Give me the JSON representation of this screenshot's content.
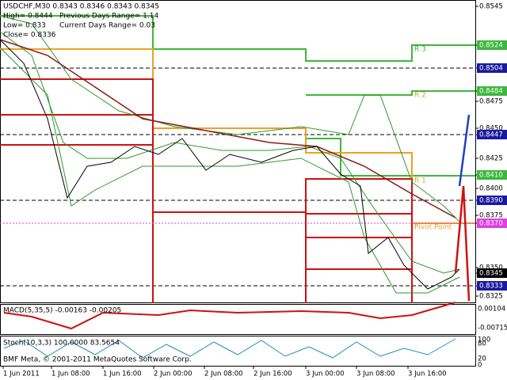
{
  "header": {
    "symbol_line": "USDCHF,M30 0.8343 0.8346 0.8343 0.8345",
    "high": "High= 0.8444",
    "prev_range": "Previous Days Range= 1.14",
    "low": "Low= 0.833",
    "cur_range": "Current Days Range= 0.03",
    "close": "Close= 0.8336"
  },
  "pivot_labels": [
    "R 3",
    "R 2",
    "R 1",
    "Pivot Point"
  ],
  "price_axis": [
    "0.8545",
    "0.8524",
    "0.8504",
    "0.8484",
    "0.8475",
    "0.8450",
    "0.8447",
    "0.8425",
    "0.8410",
    "0.8400",
    "0.8390",
    "0.8375",
    "0.8370",
    "0.8350",
    "0.8345",
    "0.8333",
    "0.8325"
  ],
  "macd": {
    "label": "MACD(5,35,5) -0.00163 -0.00205",
    "axis": [
      "0.00104",
      "-0.00715"
    ]
  },
  "stoch": {
    "label": "Stoch(10,3,3) 100.0000 83.5654",
    "axis": [
      "100",
      "80",
      "20",
      "0"
    ]
  },
  "copyright": "BMF Meta, © 2001-2011 MetaQuotes Software Corp.",
  "time_axis": [
    "1 Jun 2011",
    "1 Jun 08:00",
    "1 Jun 16:00",
    "2 Jun 00:00",
    "2 Jun 08:00",
    "2 Jun 16:00",
    "3 Jun 00:00",
    "3 Jun 08:00",
    "3 Jun 16:00"
  ]
}
